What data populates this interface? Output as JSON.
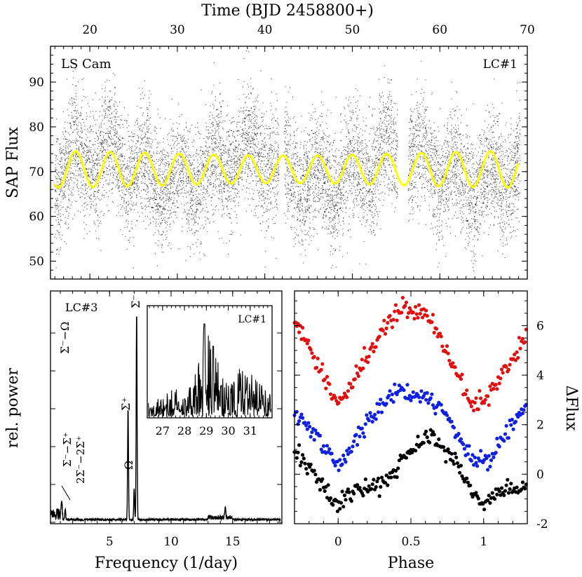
{
  "top": {
    "title": "Time (BJD 2458800+)",
    "ylabel": "SAP Flux",
    "object": "LS Cam",
    "lc": "LC#1",
    "xticks": [
      "20",
      "30",
      "40",
      "50",
      "60",
      "70"
    ],
    "yticks": [
      "50",
      "60",
      "70",
      "80",
      "90"
    ]
  },
  "left": {
    "xlabel": "Frequency (1/day)",
    "ylabel": "rel. power",
    "lc": "LC#3",
    "xticks": [
      "5",
      "10",
      "15"
    ],
    "labels": {
      "sigma_minus": "Σ⁻",
      "sigma_plus": "Σ⁺",
      "omega": "Ω",
      "sm_omega": "Σ⁻−Ω",
      "sm_sp_line1": "Σ⁻−Σ⁺",
      "sm_sp_line2": "2Σ⁻−2Σ⁺"
    },
    "inset": {
      "lc": "LC#1",
      "xticks": [
        "27",
        "28",
        "29",
        "30",
        "31"
      ]
    }
  },
  "right": {
    "xlabel": "Phase",
    "ylabel": "ΔFlux",
    "xticks": [
      "0",
      "0.5",
      "1"
    ],
    "yticks": [
      "-2",
      "0",
      "2",
      "4",
      "6"
    ],
    "colors": [
      "#e01010",
      "#1020e0",
      "#000000"
    ]
  },
  "chart_data": [
    {
      "type": "scatter",
      "title": "Time (BJD 2458800+)",
      "ylabel": "SAP Flux",
      "xlim": [
        15.5,
        70
      ],
      "ylim": [
        46,
        98
      ],
      "series": [
        {
          "name": "",
          "kind": "points",
          "description_values": "dense scatter ~55–85 modulated at ~4 d"
        },
        {
          "name": "",
          "kind": "fit",
          "x": [
            16,
            18,
            20,
            22,
            24,
            26,
            28,
            30,
            32,
            34,
            36,
            38,
            40,
            42,
            44,
            46,
            48,
            50,
            52,
            54,
            56,
            58,
            60,
            62,
            64,
            66,
            68,
            69
          ],
          "values": [
            67,
            68.5,
            71,
            67.5,
            73.5,
            69,
            71.5,
            67.5,
            72,
            68,
            73.5,
            68.5,
            74,
            67.5,
            75,
            68,
            74.5,
            68,
            74.5,
            68,
            74,
            68,
            72.5,
            67,
            72,
            66,
            72,
            69
          ]
        }
      ]
    },
    {
      "type": "line",
      "xlabel": "Frequency (1/day)",
      "ylabel": "rel. power",
      "xlim": [
        0.2,
        19
      ],
      "peaks": [
        {
          "label": "Σ⁻",
          "x": 7.2,
          "value": 1.0
        },
        {
          "label": "Σ⁺",
          "x": 6.5,
          "value": 0.54
        },
        {
          "label": "Ω",
          "x": 7.0,
          "value": 0.15
        },
        {
          "label": "Σ⁻−Ω",
          "x": 1.1,
          "value": 0.08
        },
        {
          "label": "2Σ⁻−2Σ⁺",
          "x": 1.4,
          "value": 0.05
        },
        {
          "label": "",
          "x": 14.4,
          "value": 0.05
        }
      ]
    },
    {
      "type": "line",
      "xlabel": "",
      "ylabel": "",
      "xlim": [
        26.3,
        32
      ],
      "series": [
        {
          "name": "LC#1",
          "x": [
            26.5,
            27,
            27.5,
            28,
            28.4,
            28.9,
            29.3,
            29.7,
            30.1,
            30.5,
            30.9,
            31.3,
            31.7
          ],
          "values": [
            0.15,
            0.22,
            0.3,
            0.28,
            0.35,
            0.95,
            0.75,
            0.45,
            0.35,
            0.52,
            0.45,
            0.4,
            0.3
          ]
        }
      ]
    },
    {
      "type": "scatter",
      "xlabel": "Phase",
      "ylabel": "ΔFlux",
      "xlim": [
        -0.3,
        1.3
      ],
      "ylim": [
        -2,
        7.4
      ],
      "series": [
        {
          "name": "",
          "color": "#e01010",
          "x": [
            -0.3,
            -0.2,
            -0.1,
            -0.05,
            0,
            0.1,
            0.2,
            0.3,
            0.4,
            0.45,
            0.5,
            0.6,
            0.7,
            0.8,
            0.9,
            0.95,
            1.0,
            1.1,
            1.2,
            1.3
          ],
          "values": [
            6,
            5.2,
            4,
            3.2,
            2.8,
            3.8,
            4.8,
            5.8,
            6.5,
            6.8,
            6.5,
            6.5,
            5.6,
            4.2,
            3,
            2.8,
            2.8,
            3.8,
            4.6,
            5.6
          ]
        },
        {
          "name": "",
          "color": "#1020e0",
          "x": [
            -0.3,
            -0.2,
            -0.1,
            0,
            0.1,
            0.2,
            0.3,
            0.4,
            0.5,
            0.6,
            0.7,
            0.8,
            0.9,
            1.0,
            1.1,
            1.2,
            1.3
          ],
          "values": [
            2.5,
            2,
            1.1,
            0.3,
            1.2,
            2.1,
            2.8,
            3.4,
            3.3,
            3.1,
            2.6,
            1.8,
            0.8,
            0.3,
            1.2,
            2,
            2.8
          ]
        },
        {
          "name": "",
          "color": "#000000",
          "x": [
            -0.3,
            -0.2,
            -0.1,
            0,
            0.05,
            0.1,
            0.2,
            0.3,
            0.4,
            0.5,
            0.6,
            0.65,
            0.7,
            0.8,
            0.9,
            1.0,
            1.05,
            1.1,
            1.2,
            1.3
          ],
          "values": [
            1,
            0.3,
            -0.5,
            -1.3,
            -0.9,
            -0.7,
            -0.6,
            -0.4,
            0.2,
            0.9,
            1.5,
            1.5,
            1.2,
            0.5,
            -0.5,
            -1.3,
            -0.8,
            -0.7,
            -0.5,
            -0.6
          ]
        }
      ]
    }
  ]
}
